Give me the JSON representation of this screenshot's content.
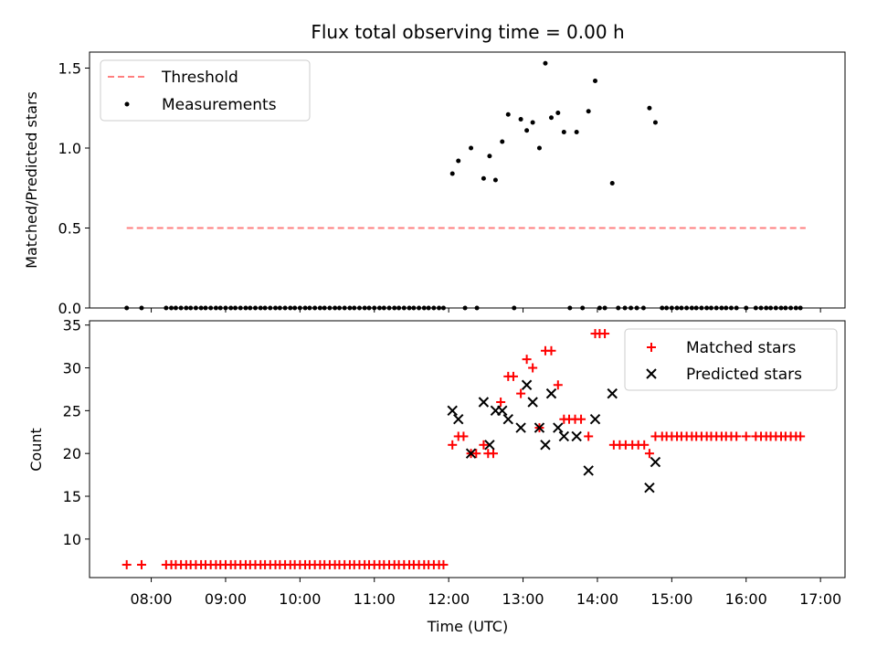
{
  "chart_data": [
    {
      "type": "scatter",
      "title": "Flux total observing time = 0.00 h",
      "xlabel": "",
      "ylabel": "Matched/Predicted stars",
      "xlim": [
        7.17,
        17.33
      ],
      "ylim": [
        0.0,
        1.6
      ],
      "yticks": [
        0.0,
        0.5,
        1.0,
        1.5
      ],
      "ytick_labels": [
        "0.0",
        "0.5",
        "1.0",
        "1.5"
      ],
      "legend": {
        "placement": "upper-left",
        "entries": [
          {
            "label": "Threshold",
            "style": "dashed-line",
            "color": "#ff7f7f"
          },
          {
            "label": "Measurements",
            "style": "dot",
            "color": "#000000"
          }
        ]
      },
      "series": [
        {
          "name": "Threshold",
          "kind": "line",
          "x": [
            7.67,
            16.8
          ],
          "y": [
            0.5,
            0.5
          ]
        },
        {
          "name": "Measurements",
          "kind": "scatter",
          "x": [
            7.67,
            7.87,
            8.2,
            8.27,
            8.33,
            8.4,
            8.47,
            8.53,
            8.6,
            8.67,
            8.73,
            8.8,
            8.87,
            8.93,
            9.0,
            9.07,
            9.13,
            9.2,
            9.27,
            9.33,
            9.4,
            9.47,
            9.53,
            9.6,
            9.67,
            9.73,
            9.8,
            9.87,
            9.93,
            10.0,
            10.07,
            10.13,
            10.2,
            10.27,
            10.33,
            10.4,
            10.47,
            10.53,
            10.6,
            10.67,
            10.73,
            10.8,
            10.87,
            10.93,
            11.0,
            11.07,
            11.13,
            11.2,
            11.27,
            11.33,
            11.4,
            11.47,
            11.53,
            11.6,
            11.67,
            11.73,
            11.8,
            11.87,
            11.93,
            12.05,
            12.13,
            12.3,
            12.47,
            12.55,
            12.63,
            12.72,
            12.8,
            12.97,
            13.05,
            13.13,
            13.22,
            13.3,
            13.38,
            13.47,
            13.55,
            13.72,
            13.88,
            13.97,
            14.2,
            14.7,
            14.78,
            12.22,
            12.38,
            12.88,
            13.63,
            13.8,
            14.03,
            14.1,
            14.28,
            14.37,
            14.45,
            14.53,
            14.62,
            14.87,
            14.93,
            15.0,
            15.07,
            15.13,
            15.2,
            15.27,
            15.33,
            15.4,
            15.47,
            15.53,
            15.6,
            15.67,
            15.73,
            15.8,
            15.87,
            16.0,
            16.13,
            16.2,
            16.27,
            16.33,
            16.4,
            16.47,
            16.53,
            16.6,
            16.67,
            16.73
          ],
          "y": [
            0.0,
            0.0,
            0.0,
            0.0,
            0.0,
            0.0,
            0.0,
            0.0,
            0.0,
            0.0,
            0.0,
            0.0,
            0.0,
            0.0,
            0.0,
            0.0,
            0.0,
            0.0,
            0.0,
            0.0,
            0.0,
            0.0,
            0.0,
            0.0,
            0.0,
            0.0,
            0.0,
            0.0,
            0.0,
            0.0,
            0.0,
            0.0,
            0.0,
            0.0,
            0.0,
            0.0,
            0.0,
            0.0,
            0.0,
            0.0,
            0.0,
            0.0,
            0.0,
            0.0,
            0.0,
            0.0,
            0.0,
            0.0,
            0.0,
            0.0,
            0.0,
            0.0,
            0.0,
            0.0,
            0.0,
            0.0,
            0.0,
            0.0,
            0.0,
            0.84,
            0.92,
            1.0,
            0.81,
            0.95,
            0.8,
            1.04,
            1.21,
            1.18,
            1.11,
            1.16,
            1.0,
            1.53,
            1.19,
            1.22,
            1.1,
            1.1,
            1.23,
            1.42,
            0.78,
            1.25,
            1.16,
            0.0,
            0.0,
            0.0,
            0.0,
            0.0,
            0.0,
            0.0,
            0.0,
            0.0,
            0.0,
            0.0,
            0.0,
            0.0,
            0.0,
            0.0,
            0.0,
            0.0,
            0.0,
            0.0,
            0.0,
            0.0,
            0.0,
            0.0,
            0.0,
            0.0,
            0.0,
            0.0,
            0.0,
            0.0,
            0.0,
            0.0,
            0.0,
            0.0,
            0.0,
            0.0,
            0.0,
            0.0,
            0.0,
            0.0
          ]
        }
      ]
    },
    {
      "type": "scatter",
      "title": "",
      "xlabel": "Time (UTC)",
      "ylabel": "Count",
      "xlim": [
        7.17,
        17.33
      ],
      "ylim": [
        5.5,
        35.5
      ],
      "xticks": [
        8,
        9,
        10,
        11,
        12,
        13,
        14,
        15,
        16,
        17
      ],
      "xtick_labels": [
        "08:00",
        "09:00",
        "10:00",
        "11:00",
        "12:00",
        "13:00",
        "14:00",
        "15:00",
        "16:00",
        "17:00"
      ],
      "yticks": [
        10,
        15,
        20,
        25,
        30,
        35
      ],
      "ytick_labels": [
        "10",
        "15",
        "20",
        "25",
        "30",
        "35"
      ],
      "legend": {
        "placement": "upper-right",
        "entries": [
          {
            "label": "Matched stars",
            "style": "plus",
            "color": "#ff0000"
          },
          {
            "label": "Predicted stars",
            "style": "x",
            "color": "#000000"
          }
        ]
      },
      "series": [
        {
          "name": "Matched stars",
          "marker": "plus",
          "x": [
            7.67,
            7.87,
            8.2,
            8.27,
            8.33,
            8.4,
            8.47,
            8.53,
            8.6,
            8.67,
            8.73,
            8.8,
            8.87,
            8.93,
            9.0,
            9.07,
            9.13,
            9.2,
            9.27,
            9.33,
            9.4,
            9.47,
            9.53,
            9.6,
            9.67,
            9.73,
            9.8,
            9.87,
            9.93,
            10.0,
            10.07,
            10.13,
            10.2,
            10.27,
            10.33,
            10.4,
            10.47,
            10.53,
            10.6,
            10.67,
            10.73,
            10.8,
            10.87,
            10.93,
            11.0,
            11.07,
            11.13,
            11.2,
            11.27,
            11.33,
            11.4,
            11.47,
            11.53,
            11.6,
            11.67,
            11.73,
            11.8,
            11.87,
            11.93,
            12.05,
            12.13,
            12.2,
            12.3,
            12.37,
            12.47,
            12.53,
            12.6,
            12.7,
            12.8,
            12.87,
            12.97,
            13.05,
            13.13,
            13.22,
            13.3,
            13.38,
            13.47,
            13.55,
            13.62,
            13.7,
            13.78,
            13.88,
            13.97,
            14.03,
            14.1,
            14.22,
            14.3,
            14.38,
            14.47,
            14.55,
            14.63,
            14.7,
            14.78,
            14.87,
            14.93,
            15.0,
            15.07,
            15.13,
            15.2,
            15.27,
            15.33,
            15.4,
            15.47,
            15.53,
            15.6,
            15.67,
            15.73,
            15.8,
            15.87,
            16.0,
            16.13,
            16.2,
            16.27,
            16.33,
            16.4,
            16.47,
            16.53,
            16.6,
            16.67,
            16.73
          ],
          "y": [
            7,
            7,
            7,
            7,
            7,
            7,
            7,
            7,
            7,
            7,
            7,
            7,
            7,
            7,
            7,
            7,
            7,
            7,
            7,
            7,
            7,
            7,
            7,
            7,
            7,
            7,
            7,
            7,
            7,
            7,
            7,
            7,
            7,
            7,
            7,
            7,
            7,
            7,
            7,
            7,
            7,
            7,
            7,
            7,
            7,
            7,
            7,
            7,
            7,
            7,
            7,
            7,
            7,
            7,
            7,
            7,
            7,
            7,
            7,
            21,
            22,
            22,
            20,
            20,
            21,
            20,
            20,
            26,
            29,
            29,
            27,
            31,
            30,
            23,
            32,
            32,
            28,
            24,
            24,
            24,
            24,
            22,
            34,
            34,
            34,
            21,
            21,
            21,
            21,
            21,
            21,
            20,
            22,
            22,
            22,
            22,
            22,
            22,
            22,
            22,
            22,
            22,
            22,
            22,
            22,
            22,
            22,
            22,
            22,
            22,
            22,
            22,
            22,
            22,
            22,
            22,
            22,
            22,
            22,
            22
          ]
        },
        {
          "name": "Predicted stars",
          "marker": "x",
          "x": [
            12.05,
            12.13,
            12.3,
            12.47,
            12.55,
            12.63,
            12.72,
            12.8,
            12.97,
            13.05,
            13.13,
            13.22,
            13.3,
            13.38,
            13.47,
            13.55,
            13.72,
            13.88,
            13.97,
            14.2,
            14.7,
            14.78
          ],
          "y": [
            25,
            24,
            20,
            26,
            21,
            25,
            25,
            24,
            23,
            28,
            26,
            23,
            21,
            27,
            23,
            22,
            22,
            18,
            24,
            27,
            16,
            19
          ]
        }
      ]
    }
  ]
}
